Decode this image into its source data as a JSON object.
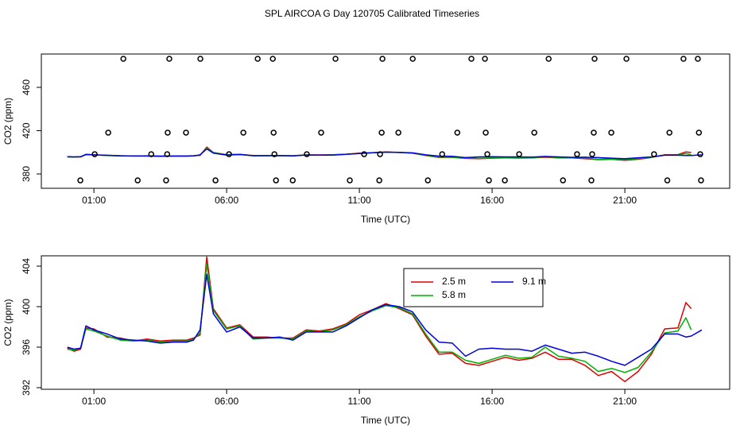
{
  "title": "SPL AIRCOA G  Day 120705  Calibrated Timeseries",
  "chart_data": [
    {
      "type": "line",
      "xlabel": "Time (UTC)",
      "ylabel": "CO2 (ppm)",
      "xlim": [
        -0.98,
        24.95
      ],
      "ylim": [
        366.8,
        490.8
      ],
      "xticks": [
        {
          "value": 1,
          "label": "01:00"
        },
        {
          "value": 6,
          "label": "06:00"
        },
        {
          "value": 11,
          "label": "11:00"
        },
        {
          "value": 16,
          "label": "16:00"
        },
        {
          "value": 21,
          "label": "21:00"
        }
      ],
      "yticks": [
        380,
        420,
        460
      ],
      "x": [
        0,
        0.25,
        0.5,
        0.7,
        1,
        1.5,
        2,
        2.5,
        3,
        3.5,
        4,
        4.5,
        4.75,
        5,
        5.25,
        5.5,
        6,
        6.5,
        7,
        7.5,
        8,
        8.5,
        9,
        9.5,
        10,
        10.5,
        11,
        11.5,
        12,
        12.5,
        13,
        13.5,
        14,
        14.5,
        15,
        15.5,
        16,
        16.5,
        17,
        17.5,
        18,
        18.5,
        19,
        19.5,
        20,
        20.5,
        21,
        21.5,
        22,
        22.5,
        23,
        23.3,
        23.5,
        23.9
      ],
      "series": [
        {
          "color": "#e00000",
          "values": [
            395.9,
            395.6,
            395.8,
            397.9,
            397.8,
            397.0,
            396.9,
            396.6,
            396.8,
            396.6,
            396.7,
            396.7,
            396.9,
            397.2,
            404.9,
            399.8,
            397.9,
            398.2,
            397.0,
            397.0,
            396.9,
            396.9,
            397.7,
            397.6,
            397.8,
            398.3,
            399.2,
            399.7,
            400.3,
            399.8,
            399.2,
            397.1,
            395.3,
            395.4,
            394.4,
            394.2,
            394.6,
            395.0,
            394.7,
            394.9,
            395.5,
            394.8,
            394.8,
            394.2,
            393.2,
            393.6,
            392.6,
            393.6,
            395.3,
            397.8,
            397.9,
            400.4,
            399.8,
            null
          ]
        },
        {
          "color": "#00b000",
          "values": [
            395.8,
            395.7,
            395.9,
            397.8,
            397.6,
            397.1,
            396.7,
            396.6,
            396.7,
            396.5,
            396.6,
            396.6,
            396.8,
            397.4,
            404.2,
            399.6,
            397.8,
            398.1,
            396.8,
            396.9,
            396.9,
            396.8,
            397.6,
            397.5,
            397.7,
            398.2,
            399.0,
            399.6,
            400.1,
            399.9,
            399.3,
            397.3,
            395.5,
            395.5,
            394.7,
            394.4,
            394.8,
            395.2,
            394.9,
            395.0,
            396.0,
            395.1,
            394.9,
            394.6,
            393.6,
            393.9,
            393.5,
            394.0,
            395.5,
            397.4,
            397.6,
            398.9,
            397.7,
            null
          ]
        },
        {
          "color": "#0000e0",
          "values": [
            396.0,
            395.8,
            395.9,
            398.1,
            397.7,
            397.3,
            396.8,
            396.7,
            396.6,
            396.4,
            396.5,
            396.5,
            396.7,
            397.7,
            403.2,
            399.3,
            397.5,
            398.0,
            396.9,
            396.9,
            397.0,
            396.7,
            397.5,
            397.5,
            397.5,
            398.1,
            398.9,
            399.7,
            400.2,
            400.0,
            399.5,
            397.7,
            396.5,
            396.4,
            395.1,
            395.8,
            395.9,
            395.8,
            395.8,
            395.6,
            396.2,
            395.8,
            395.4,
            395.5,
            395.1,
            394.6,
            394.2,
            395.0,
            395.8,
            397.3,
            397.3,
            397.0,
            397.1,
            397.7
          ]
        }
      ],
      "points": {
        "color": "#000000",
        "x": [
          2.11,
          3.84,
          5.01,
          7.17,
          7.74,
          10.1,
          11.87,
          13.01,
          15.22,
          15.73,
          18.13,
          19.86,
          21.06,
          23.21,
          23.75,
          1.54,
          3.78,
          4.47,
          6.63,
          7.77,
          9.56,
          11.84,
          12.47,
          14.69,
          15.76,
          17.59,
          19.83,
          20.49,
          22.68,
          23.79,
          1.03,
          3.16,
          3.76,
          6.09,
          7.8,
          9.02,
          11.18,
          11.78,
          14.12,
          15.82,
          17.02,
          19.2,
          19.77,
          22.1,
          23.84,
          0.49,
          2.65,
          3.72,
          5.58,
          7.86,
          8.49,
          10.64,
          11.75,
          13.58,
          15.88,
          16.48,
          18.67,
          19.74,
          22.6,
          23.87
        ],
        "values": [
          486.4,
          486.4,
          486.4,
          486.4,
          486.4,
          486.4,
          486.4,
          486.4,
          486.4,
          486.4,
          486.4,
          486.4,
          486.4,
          486.4,
          486.4,
          418.2,
          418.2,
          418.2,
          418.2,
          418.2,
          418.2,
          418.2,
          418.2,
          418.2,
          418.2,
          418.2,
          418.2,
          418.2,
          418.2,
          418.2,
          398.3,
          398.3,
          398.3,
          398.3,
          398.3,
          398.3,
          398.3,
          398.3,
          398.3,
          398.3,
          398.3,
          398.3,
          398.3,
          398.3,
          398.3,
          374.1,
          374.1,
          374.1,
          374.1,
          374.1,
          374.1,
          374.1,
          374.1,
          374.1,
          374.1,
          374.1,
          374.1,
          374.1,
          374.1,
          374.1
        ]
      }
    },
    {
      "type": "line",
      "xlabel": "Time (UTC)",
      "ylabel": "CO2 (ppm)",
      "xlim": [
        -0.98,
        24.95
      ],
      "ylim": [
        391.84,
        405.02
      ],
      "xticks": [
        {
          "value": 1,
          "label": "01:00"
        },
        {
          "value": 6,
          "label": "06:00"
        },
        {
          "value": 11,
          "label": "11:00"
        },
        {
          "value": 16,
          "label": "16:00"
        },
        {
          "value": 21,
          "label": "21:00"
        }
      ],
      "yticks": [
        392,
        396,
        400,
        404
      ],
      "legend": "top",
      "x": [
        0,
        0.25,
        0.5,
        0.7,
        1,
        1.5,
        2,
        2.5,
        3,
        3.5,
        4,
        4.5,
        4.75,
        5,
        5.25,
        5.5,
        6,
        6.5,
        7,
        7.5,
        8,
        8.5,
        9,
        9.5,
        10,
        10.5,
        11,
        11.5,
        12,
        12.5,
        13,
        13.5,
        14,
        14.5,
        15,
        15.5,
        16,
        16.5,
        17,
        17.5,
        18,
        18.5,
        19,
        19.5,
        20,
        20.5,
        21,
        21.5,
        22,
        22.5,
        23,
        23.3,
        23.5,
        23.9
      ],
      "series": [
        {
          "name": "2.5 m",
          "color": "#e00000",
          "values": [
            395.9,
            395.6,
            395.8,
            397.9,
            397.8,
            397.0,
            396.9,
            396.6,
            396.8,
            396.6,
            396.7,
            396.7,
            396.9,
            397.2,
            404.9,
            399.8,
            397.9,
            398.2,
            397.0,
            397.0,
            396.9,
            396.9,
            397.7,
            397.6,
            397.8,
            398.3,
            399.2,
            399.7,
            400.3,
            399.8,
            399.2,
            397.1,
            395.3,
            395.4,
            394.4,
            394.2,
            394.6,
            395.0,
            394.7,
            394.9,
            395.5,
            394.8,
            394.8,
            394.2,
            393.2,
            393.6,
            392.6,
            393.6,
            395.3,
            397.8,
            397.9,
            400.4,
            399.8,
            null
          ]
        },
        {
          "name": "5.8 m",
          "color": "#00b000",
          "values": [
            395.8,
            395.7,
            395.9,
            397.8,
            397.6,
            397.1,
            396.7,
            396.6,
            396.7,
            396.5,
            396.6,
            396.6,
            396.8,
            397.4,
            404.2,
            399.6,
            397.8,
            398.1,
            396.8,
            396.9,
            396.9,
            396.8,
            397.6,
            397.5,
            397.7,
            398.2,
            399.0,
            399.6,
            400.1,
            399.9,
            399.3,
            397.3,
            395.5,
            395.5,
            394.7,
            394.4,
            394.8,
            395.2,
            394.9,
            395.0,
            396.0,
            395.1,
            394.9,
            394.6,
            393.6,
            393.9,
            393.5,
            394.0,
            395.5,
            397.4,
            397.6,
            398.9,
            397.7,
            null
          ]
        },
        {
          "name": "9.1 m",
          "color": "#0000e0",
          "values": [
            396.0,
            395.8,
            395.9,
            398.1,
            397.7,
            397.3,
            396.8,
            396.7,
            396.6,
            396.4,
            396.5,
            396.5,
            396.7,
            397.7,
            403.2,
            399.3,
            397.5,
            398.0,
            396.9,
            396.9,
            397.0,
            396.7,
            397.5,
            397.5,
            397.5,
            398.1,
            398.9,
            399.7,
            400.2,
            400.0,
            399.5,
            397.7,
            396.5,
            396.4,
            395.1,
            395.8,
            395.9,
            395.8,
            395.8,
            395.6,
            396.2,
            395.8,
            395.4,
            395.5,
            395.1,
            394.6,
            394.2,
            395.0,
            395.8,
            397.3,
            397.3,
            397.0,
            397.1,
            397.7
          ]
        }
      ]
    }
  ]
}
